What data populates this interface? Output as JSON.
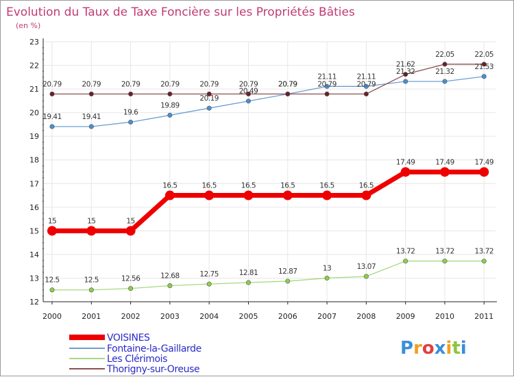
{
  "chart_data": {
    "type": "line",
    "title": "Evolution du Taux de Taxe Foncière sur les Propriétés Bâties",
    "subtitle": "(en %)",
    "xlabel": "",
    "ylabel": "",
    "ylim": [
      12,
      23
    ],
    "yticks": [
      12,
      13,
      14,
      15,
      16,
      17,
      18,
      19,
      20,
      21,
      22,
      23
    ],
    "grid": true,
    "legend_position": "bottom-left",
    "categories": [
      "2000",
      "2001",
      "2002",
      "2003",
      "2004",
      "2005",
      "2006",
      "2007",
      "2008",
      "2009",
      "2010",
      "2011"
    ],
    "series": [
      {
        "name": "VOISINES",
        "color": "#ee0000",
        "labels": [
          "15",
          "15",
          "15",
          "16.5",
          "16.5",
          "16.5",
          "16.5",
          "16.5",
          "16.5",
          "17.49",
          "17.49",
          "17.49"
        ],
        "values": [
          15,
          15,
          15,
          16.5,
          16.5,
          16.5,
          16.5,
          16.5,
          16.5,
          17.49,
          17.49,
          17.49
        ]
      },
      {
        "name": "Fontaine-la-Gaillarde",
        "color": "#6a9ed0",
        "marker_color": "#4a90d0",
        "labels": [
          "19.41",
          "19.41",
          "19.6",
          "19.89",
          "20.19",
          "20.49",
          "20.79",
          "21.11",
          "21.11",
          "21.32",
          "21.32",
          "21.53"
        ],
        "values": [
          19.41,
          19.41,
          19.6,
          19.89,
          20.19,
          20.49,
          20.79,
          21.11,
          21.11,
          21.32,
          21.32,
          21.53
        ]
      },
      {
        "name": "Les Clérimois",
        "color": "#a6d880",
        "marker_color": "#8cd048",
        "labels": [
          "12.5",
          "12.5",
          "12.56",
          "12.68",
          "12.75",
          "12.81",
          "12.87",
          "13",
          "13.07",
          "13.72",
          "13.72",
          "13.72"
        ],
        "values": [
          12.5,
          12.5,
          12.56,
          12.68,
          12.75,
          12.81,
          12.87,
          13,
          13.07,
          13.72,
          13.72,
          13.72
        ]
      },
      {
        "name": "Thorigny-sur-Oreuse",
        "color": "#8b4f4f",
        "marker_color": "#6a1f2a",
        "labels": [
          "20.79",
          "20.79",
          "20.79",
          "20.79",
          "20.79",
          "20.79",
          "20.79",
          "20.79",
          "20.79",
          "21.62",
          "22.05",
          "22.05"
        ],
        "values": [
          20.79,
          20.79,
          20.79,
          20.79,
          20.79,
          20.79,
          20.79,
          20.79,
          20.79,
          21.62,
          22.05,
          22.05
        ]
      }
    ]
  },
  "title_color": "#c03a73",
  "logo": {
    "text": "Proxiti"
  }
}
